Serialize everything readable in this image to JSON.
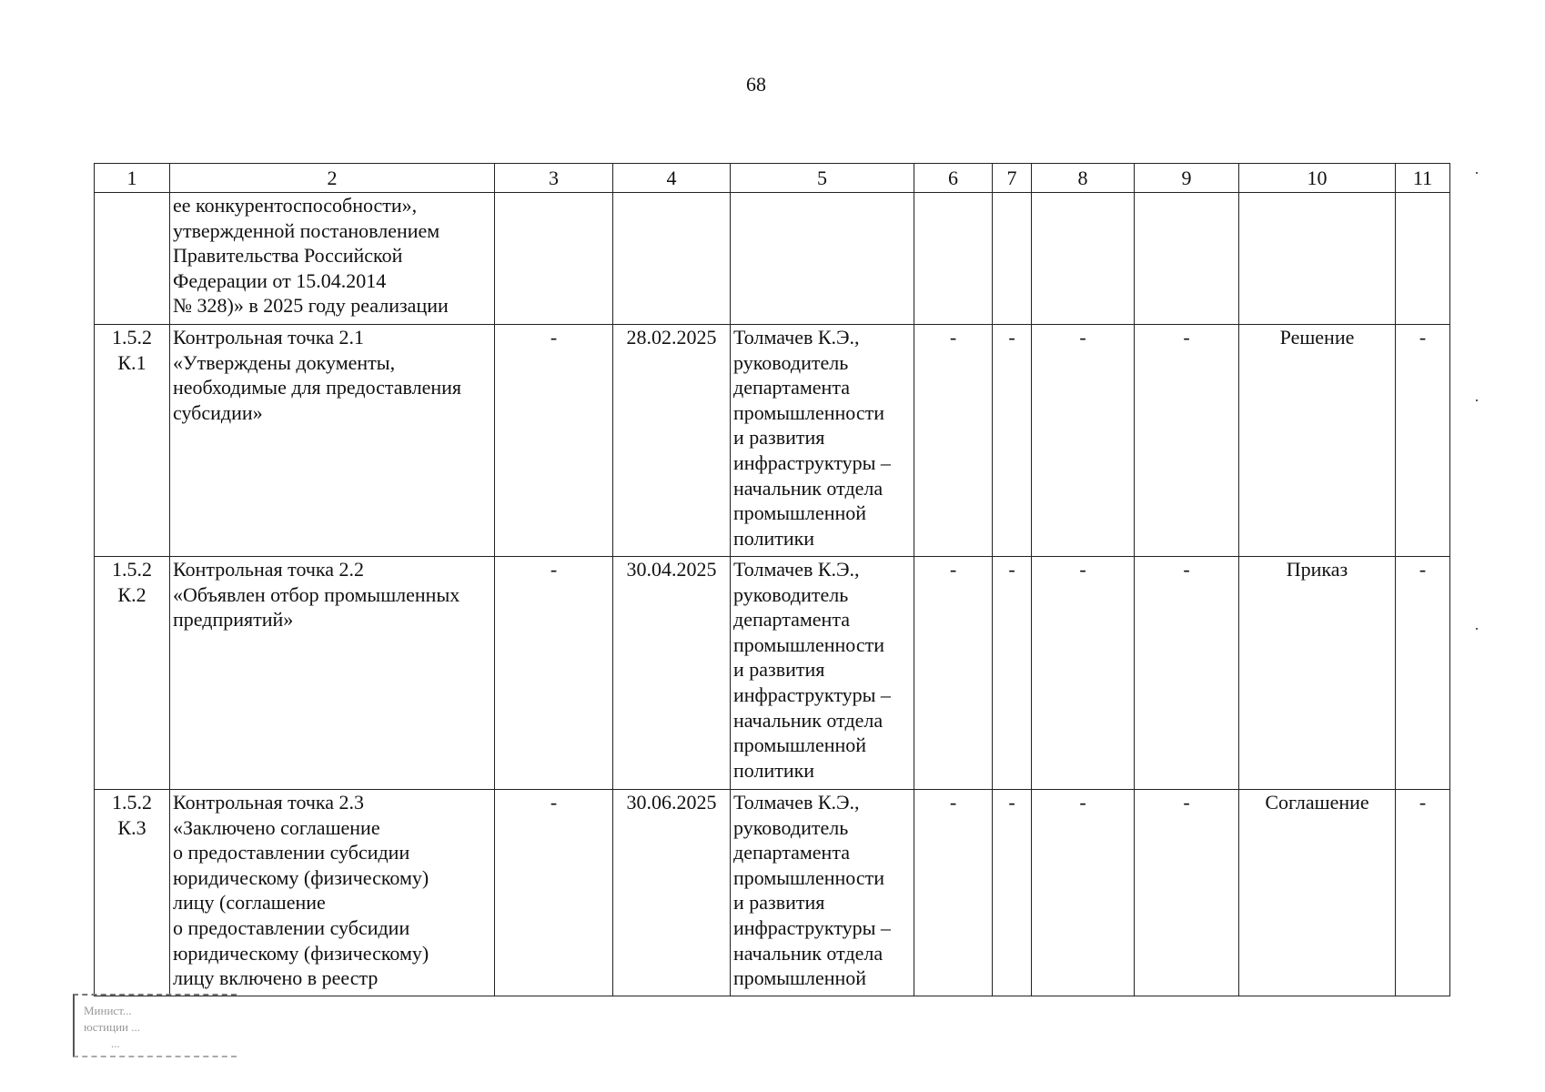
{
  "page_number": "68",
  "table": {
    "headers": [
      "1",
      "2",
      "3",
      "4",
      "5",
      "6",
      "7",
      "8",
      "9",
      "10",
      "11"
    ],
    "rows": [
      {
        "cells": [
          "",
          "ее конкурентоспособности»,\nутвержденной постановлением\nПравительства Российской\nФедерации от 15.04.2014\n№ 328)» в 2025 году реализации",
          "",
          "",
          "",
          "",
          "",
          "",
          "",
          "",
          ""
        ]
      },
      {
        "cells": [
          "1.5.2\nК.1",
          "Контрольная точка 2.1\n«Утверждены документы,\nнеобходимые для предоставления\nсубсидии»",
          "-",
          "28.02.2025",
          "Толмачев К.Э.,\nруководитель\nдепартамента\nпромышленности\nи развития\nинфраструктуры –\nначальник отдела\nпромышленной\nполитики",
          "-",
          "-",
          "-",
          "-",
          "Решение",
          "-"
        ]
      },
      {
        "cells": [
          "1.5.2\nК.2",
          "Контрольная точка 2.2\n«Объявлен отбор промышленных\nпредприятий»",
          "-",
          "30.04.2025",
          "Толмачев К.Э.,\nруководитель\nдепартамента\nпромышленности\nи развития\nинфраструктуры –\nначальник отдела\nпромышленной\nполитики",
          "-",
          "-",
          "-",
          "-",
          "Приказ",
          "-"
        ]
      },
      {
        "cells": [
          "1.5.2\nК.3",
          "Контрольная точка 2.3\n«Заключено соглашение\nо предоставлении субсидии\nюридическому (физическому)\nлицу (соглашение\nо предоставлении субсидии\nюридическому (физическому)\nлицу включено в реестр",
          "-",
          "30.06.2025",
          "Толмачев К.Э.,\nруководитель\nдепартамента\nпромышленности\nи развития\nинфраструктуры –\nначальник отдела\nпромышленной",
          "-",
          "-",
          "-",
          "-",
          "Соглашение",
          "-"
        ]
      }
    ]
  },
  "stamp": {
    "lines": [
      "Минист...",
      "юстиции ...",
      "..."
    ]
  }
}
